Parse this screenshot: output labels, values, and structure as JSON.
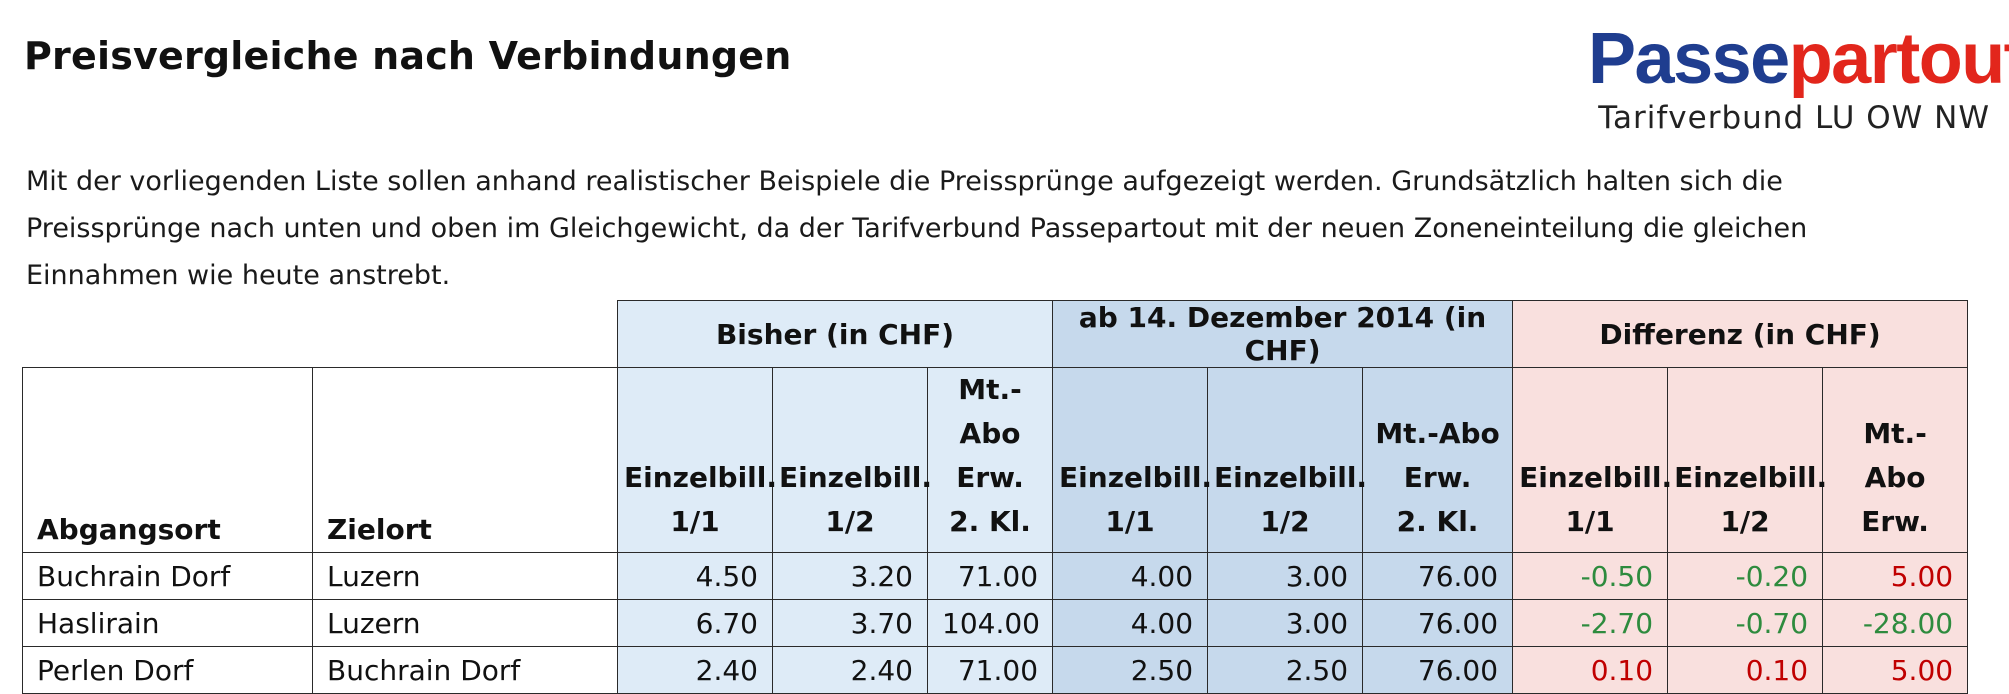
{
  "title": "Preisvergleiche nach Verbindungen",
  "logo": {
    "part1": "Passe",
    "part2": "partout",
    "subtitle": "Tarifverbund LU OW NW"
  },
  "intro": "Mit der vorliegenden Liste sollen anhand realistischer Beispiele die Preissprünge aufgezeigt werden. Grundsätzlich halten sich die Preissprünge nach unten und oben im Gleichgewicht, da der Tarifverbund Passepartout mit der neuen Zoneneinteilung die gleichen Einnahmen wie heute anstrebt.",
  "groups": {
    "old": "Bisher (in CHF)",
    "new": "ab 14. Dezember 2014 (in CHF)",
    "diff": "Differenz (in CHF)"
  },
  "columns": {
    "from": "Abgangsort",
    "to": "Zielort",
    "old_e1": [
      "Einzelbill.",
      "1/1"
    ],
    "old_e2": [
      "Einzelbill.",
      "1/2"
    ],
    "old_abo": [
      "Mt.-Abo",
      "Erw.",
      "2. Kl."
    ],
    "new_e1": [
      "Einzelbill.",
      "1/1"
    ],
    "new_e2": [
      "Einzelbill.",
      "1/2"
    ],
    "new_abo": [
      "Mt.-Abo",
      "Erw.",
      "2. Kl."
    ],
    "diff_e1": [
      "Einzelbill.",
      "1/1"
    ],
    "diff_e2": [
      "Einzelbill.",
      "1/2"
    ],
    "diff_abo": [
      "Mt.-",
      "Abo",
      "Erw."
    ]
  },
  "rows": [
    {
      "from": "Buchrain Dorf",
      "to": "Luzern",
      "old": [
        "4.50",
        "3.20",
        "71.00"
      ],
      "new": [
        "4.00",
        "3.00",
        "76.00"
      ],
      "diff": [
        "-0.50",
        "-0.20",
        "5.00"
      ]
    },
    {
      "from": "Haslirain",
      "to": "Luzern",
      "old": [
        "6.70",
        "3.70",
        "104.00"
      ],
      "new": [
        "4.00",
        "3.00",
        "76.00"
      ],
      "diff": [
        "-2.70",
        "-0.70",
        "-28.00"
      ]
    },
    {
      "from": "Perlen Dorf",
      "to": "Buchrain Dorf",
      "old": [
        "2.40",
        "2.40",
        "71.00"
      ],
      "new": [
        "2.50",
        "2.50",
        "76.00"
      ],
      "diff": [
        "0.10",
        "0.10",
        "5.00"
      ]
    }
  ],
  "colors": {
    "positive": "#c00000",
    "negative": "#2e8b3e",
    "logo_blue": "#1f3d8f",
    "logo_red": "#e2261c"
  }
}
